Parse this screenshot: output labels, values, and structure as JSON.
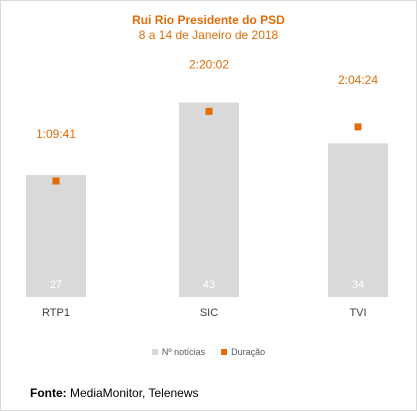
{
  "chart_data": {
    "type": "bar",
    "title": "Rui Rio Presidente do PSD",
    "subtitle": "8 a 14 de Janeiro de 2018",
    "categories": [
      "RTP1",
      "SIC",
      "TVI"
    ],
    "series": [
      {
        "name": "Nº notícias",
        "kind": "bar",
        "color": "#d9d9d9",
        "values": [
          27,
          43,
          34
        ],
        "labels": [
          "27",
          "43",
          "34"
        ]
      },
      {
        "name": "Duração",
        "kind": "marker",
        "color": "#e36c09",
        "values_seconds": [
          4181,
          8402,
          7464
        ],
        "labels": [
          "1:09:41",
          "2:20:02",
          "2:04:24"
        ]
      }
    ],
    "grid": false,
    "legend_position": "bottom"
  },
  "source": {
    "label": "Fonte:",
    "text": "MediaMonitor, Telenews"
  }
}
